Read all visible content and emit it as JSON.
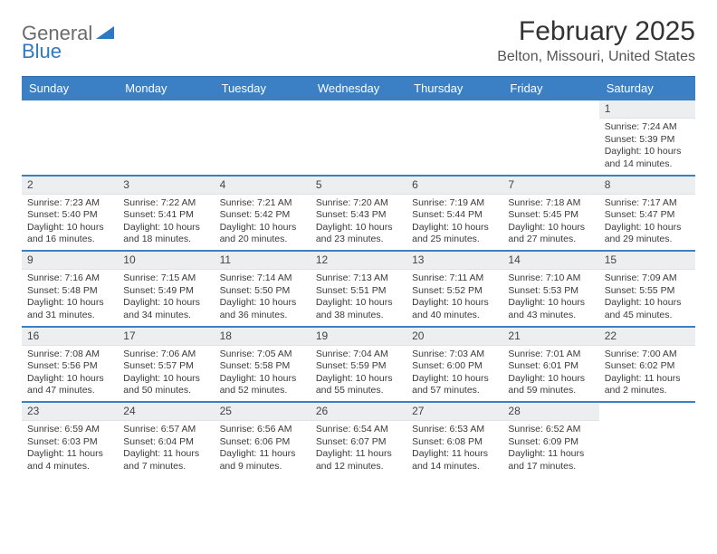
{
  "brand": {
    "part1": "General",
    "part2": "Blue",
    "triangle_color": "#2f78c4"
  },
  "title": "February 2025",
  "location": "Belton, Missouri, United States",
  "colors": {
    "header_bg": "#3b7fc4",
    "header_text": "#ffffff",
    "week_divider": "#3b7fc4",
    "daynum_bg": "#eceef0",
    "body_text": "#3a3a3a",
    "title_text": "#333333",
    "location_text": "#555555"
  },
  "typography": {
    "title_fontsize": 30,
    "location_fontsize": 16,
    "dayhead_fontsize": 13,
    "daynum_fontsize": 12,
    "cell_fontsize": 10.5
  },
  "day_headers": [
    "Sunday",
    "Monday",
    "Tuesday",
    "Wednesday",
    "Thursday",
    "Friday",
    "Saturday"
  ],
  "weeks": [
    [
      {
        "n": "",
        "sunrise": "",
        "sunset": "",
        "day1": "",
        "day2": ""
      },
      {
        "n": "",
        "sunrise": "",
        "sunset": "",
        "day1": "",
        "day2": ""
      },
      {
        "n": "",
        "sunrise": "",
        "sunset": "",
        "day1": "",
        "day2": ""
      },
      {
        "n": "",
        "sunrise": "",
        "sunset": "",
        "day1": "",
        "day2": ""
      },
      {
        "n": "",
        "sunrise": "",
        "sunset": "",
        "day1": "",
        "day2": ""
      },
      {
        "n": "",
        "sunrise": "",
        "sunset": "",
        "day1": "",
        "day2": ""
      },
      {
        "n": "1",
        "sunrise": "Sunrise: 7:24 AM",
        "sunset": "Sunset: 5:39 PM",
        "day1": "Daylight: 10 hours",
        "day2": "and 14 minutes."
      }
    ],
    [
      {
        "n": "2",
        "sunrise": "Sunrise: 7:23 AM",
        "sunset": "Sunset: 5:40 PM",
        "day1": "Daylight: 10 hours",
        "day2": "and 16 minutes."
      },
      {
        "n": "3",
        "sunrise": "Sunrise: 7:22 AM",
        "sunset": "Sunset: 5:41 PM",
        "day1": "Daylight: 10 hours",
        "day2": "and 18 minutes."
      },
      {
        "n": "4",
        "sunrise": "Sunrise: 7:21 AM",
        "sunset": "Sunset: 5:42 PM",
        "day1": "Daylight: 10 hours",
        "day2": "and 20 minutes."
      },
      {
        "n": "5",
        "sunrise": "Sunrise: 7:20 AM",
        "sunset": "Sunset: 5:43 PM",
        "day1": "Daylight: 10 hours",
        "day2": "and 23 minutes."
      },
      {
        "n": "6",
        "sunrise": "Sunrise: 7:19 AM",
        "sunset": "Sunset: 5:44 PM",
        "day1": "Daylight: 10 hours",
        "day2": "and 25 minutes."
      },
      {
        "n": "7",
        "sunrise": "Sunrise: 7:18 AM",
        "sunset": "Sunset: 5:45 PM",
        "day1": "Daylight: 10 hours",
        "day2": "and 27 minutes."
      },
      {
        "n": "8",
        "sunrise": "Sunrise: 7:17 AM",
        "sunset": "Sunset: 5:47 PM",
        "day1": "Daylight: 10 hours",
        "day2": "and 29 minutes."
      }
    ],
    [
      {
        "n": "9",
        "sunrise": "Sunrise: 7:16 AM",
        "sunset": "Sunset: 5:48 PM",
        "day1": "Daylight: 10 hours",
        "day2": "and 31 minutes."
      },
      {
        "n": "10",
        "sunrise": "Sunrise: 7:15 AM",
        "sunset": "Sunset: 5:49 PM",
        "day1": "Daylight: 10 hours",
        "day2": "and 34 minutes."
      },
      {
        "n": "11",
        "sunrise": "Sunrise: 7:14 AM",
        "sunset": "Sunset: 5:50 PM",
        "day1": "Daylight: 10 hours",
        "day2": "and 36 minutes."
      },
      {
        "n": "12",
        "sunrise": "Sunrise: 7:13 AM",
        "sunset": "Sunset: 5:51 PM",
        "day1": "Daylight: 10 hours",
        "day2": "and 38 minutes."
      },
      {
        "n": "13",
        "sunrise": "Sunrise: 7:11 AM",
        "sunset": "Sunset: 5:52 PM",
        "day1": "Daylight: 10 hours",
        "day2": "and 40 minutes."
      },
      {
        "n": "14",
        "sunrise": "Sunrise: 7:10 AM",
        "sunset": "Sunset: 5:53 PM",
        "day1": "Daylight: 10 hours",
        "day2": "and 43 minutes."
      },
      {
        "n": "15",
        "sunrise": "Sunrise: 7:09 AM",
        "sunset": "Sunset: 5:55 PM",
        "day1": "Daylight: 10 hours",
        "day2": "and 45 minutes."
      }
    ],
    [
      {
        "n": "16",
        "sunrise": "Sunrise: 7:08 AM",
        "sunset": "Sunset: 5:56 PM",
        "day1": "Daylight: 10 hours",
        "day2": "and 47 minutes."
      },
      {
        "n": "17",
        "sunrise": "Sunrise: 7:06 AM",
        "sunset": "Sunset: 5:57 PM",
        "day1": "Daylight: 10 hours",
        "day2": "and 50 minutes."
      },
      {
        "n": "18",
        "sunrise": "Sunrise: 7:05 AM",
        "sunset": "Sunset: 5:58 PM",
        "day1": "Daylight: 10 hours",
        "day2": "and 52 minutes."
      },
      {
        "n": "19",
        "sunrise": "Sunrise: 7:04 AM",
        "sunset": "Sunset: 5:59 PM",
        "day1": "Daylight: 10 hours",
        "day2": "and 55 minutes."
      },
      {
        "n": "20",
        "sunrise": "Sunrise: 7:03 AM",
        "sunset": "Sunset: 6:00 PM",
        "day1": "Daylight: 10 hours",
        "day2": "and 57 minutes."
      },
      {
        "n": "21",
        "sunrise": "Sunrise: 7:01 AM",
        "sunset": "Sunset: 6:01 PM",
        "day1": "Daylight: 10 hours",
        "day2": "and 59 minutes."
      },
      {
        "n": "22",
        "sunrise": "Sunrise: 7:00 AM",
        "sunset": "Sunset: 6:02 PM",
        "day1": "Daylight: 11 hours",
        "day2": "and 2 minutes."
      }
    ],
    [
      {
        "n": "23",
        "sunrise": "Sunrise: 6:59 AM",
        "sunset": "Sunset: 6:03 PM",
        "day1": "Daylight: 11 hours",
        "day2": "and 4 minutes."
      },
      {
        "n": "24",
        "sunrise": "Sunrise: 6:57 AM",
        "sunset": "Sunset: 6:04 PM",
        "day1": "Daylight: 11 hours",
        "day2": "and 7 minutes."
      },
      {
        "n": "25",
        "sunrise": "Sunrise: 6:56 AM",
        "sunset": "Sunset: 6:06 PM",
        "day1": "Daylight: 11 hours",
        "day2": "and 9 minutes."
      },
      {
        "n": "26",
        "sunrise": "Sunrise: 6:54 AM",
        "sunset": "Sunset: 6:07 PM",
        "day1": "Daylight: 11 hours",
        "day2": "and 12 minutes."
      },
      {
        "n": "27",
        "sunrise": "Sunrise: 6:53 AM",
        "sunset": "Sunset: 6:08 PM",
        "day1": "Daylight: 11 hours",
        "day2": "and 14 minutes."
      },
      {
        "n": "28",
        "sunrise": "Sunrise: 6:52 AM",
        "sunset": "Sunset: 6:09 PM",
        "day1": "Daylight: 11 hours",
        "day2": "and 17 minutes."
      },
      {
        "n": "",
        "sunrise": "",
        "sunset": "",
        "day1": "",
        "day2": ""
      }
    ]
  ]
}
